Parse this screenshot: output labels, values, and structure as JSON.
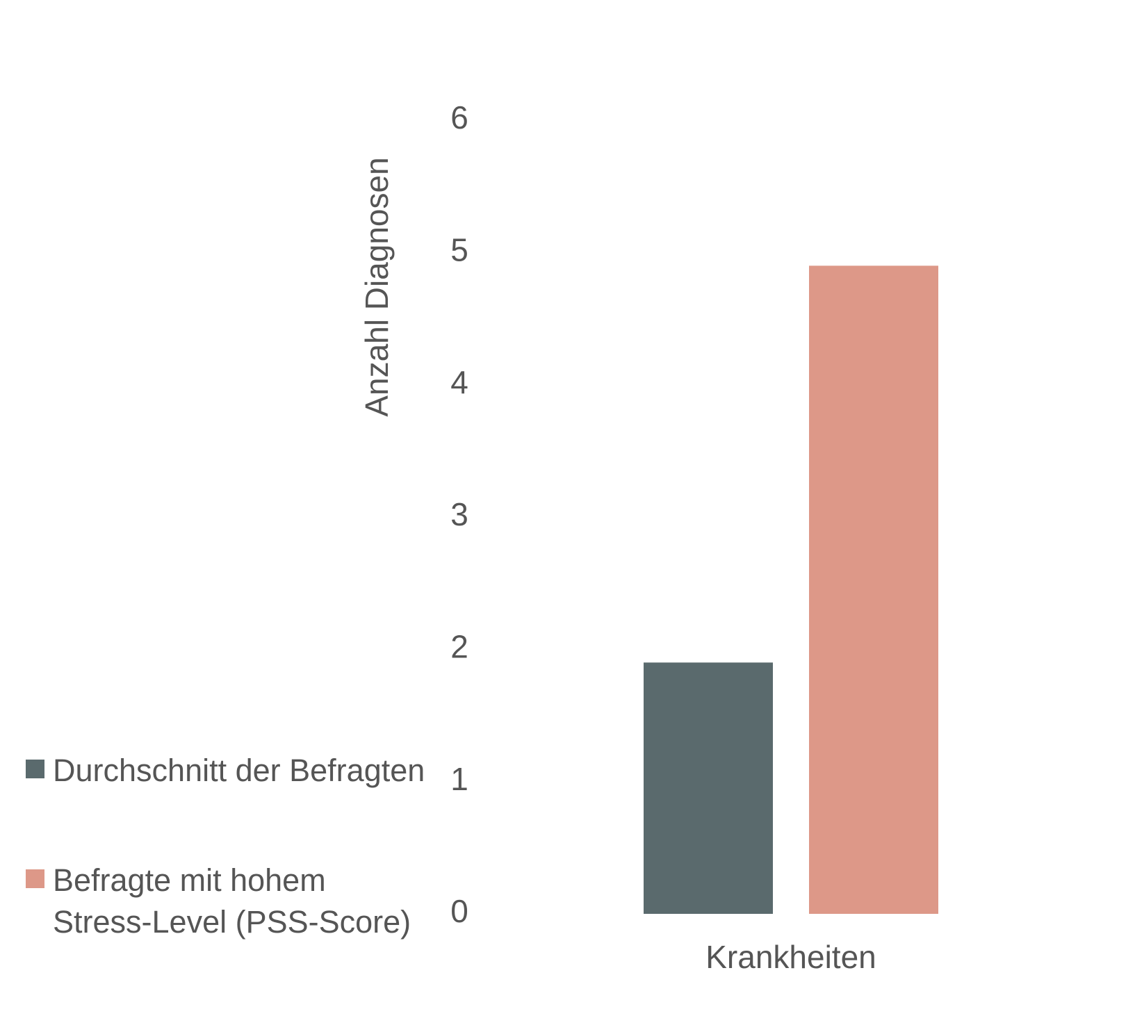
{
  "chart_data": {
    "type": "bar",
    "y_label": "Anzahl Diagnosen",
    "categories": [
      "Krankheiten"
    ],
    "series": [
      {
        "name": "Durchschnitt der Befragten",
        "color": "#5a6a6d",
        "values": [
          1.9
        ]
      },
      {
        "name": "Befragte mit hohem Stress-Level (PSS-Score)",
        "color": "#dd9888",
        "values": [
          4.9
        ]
      }
    ],
    "ylim": [
      0,
      6
    ],
    "yticks": [
      0,
      1,
      2,
      3,
      4,
      5,
      6
    ],
    "grid": false,
    "legend": "bottom-left"
  }
}
